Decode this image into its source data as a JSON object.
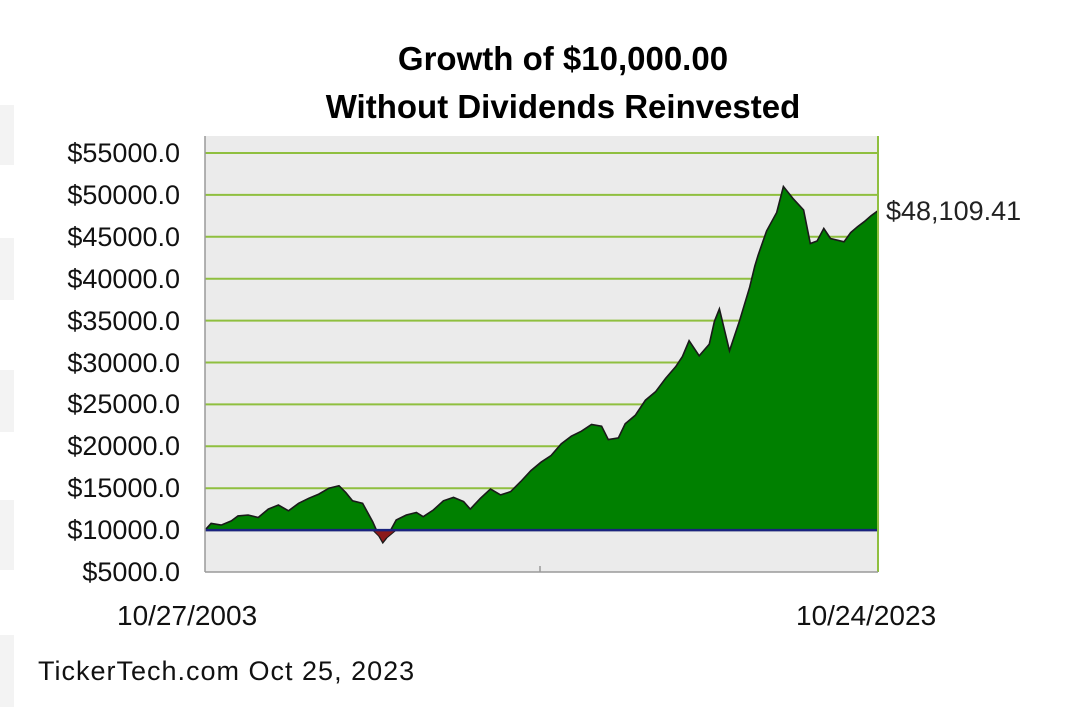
{
  "chart_data": {
    "type": "area",
    "title": "Growth of $10,000.00",
    "subtitle": "Without Dividends Reinvested",
    "start_label": "10/27/2003",
    "end_label": "10/24/2023",
    "end_value_label": "$48,109.41",
    "footer": "TickerTech.com  Oct 25, 2023",
    "baseline": 10000,
    "ylim": [
      5000,
      56000
    ],
    "xlim": [
      2003.82,
      2023.81
    ],
    "y_ticks": [
      "$55000.0",
      "$50000.0",
      "$45000.0",
      "$40000.0",
      "$35000.0",
      "$30000.0",
      "$25000.0",
      "$20000.0",
      "$15000.0",
      "$10000.0",
      "$5000.0"
    ],
    "y_tick_values": [
      55000,
      50000,
      45000,
      40000,
      35000,
      30000,
      25000,
      20000,
      15000,
      10000,
      5000
    ],
    "grid": true,
    "colors": {
      "fill": "#008000",
      "outline": "#1a1a1a",
      "baseline": "#1a237e",
      "grid": "#8fbf3f",
      "plot_bg": "#ebebeb",
      "below_baseline": "#8b1a1a"
    },
    "series": [
      {
        "x": [
          2003.82,
          2004.0,
          2004.3,
          2004.6,
          2004.8,
          2005.1,
          2005.4,
          2005.7,
          2006.0,
          2006.3,
          2006.6,
          2006.9,
          2007.2,
          2007.5,
          2007.8,
          2008.0,
          2008.2,
          2008.5,
          2008.8,
          2009.0,
          2009.1,
          2009.2,
          2009.5,
          2009.8,
          2010.1,
          2010.3,
          2010.6,
          2010.9,
          2011.2,
          2011.5,
          2011.7,
          2012.0,
          2012.3,
          2012.6,
          2012.9,
          2013.2,
          2013.5,
          2013.8,
          2014.1,
          2014.4,
          2014.7,
          2015.0,
          2015.3,
          2015.6,
          2015.8,
          2016.1,
          2016.3,
          2016.6,
          2016.9,
          2017.2,
          2017.5,
          2017.8,
          2018.0,
          2018.2,
          2018.5,
          2018.8,
          2018.95,
          2019.1,
          2019.4,
          2019.7,
          2020.0,
          2020.15,
          2020.25,
          2020.5,
          2020.8,
          2021.0,
          2021.3,
          2021.6,
          2021.8,
          2022.0,
          2022.2,
          2022.4,
          2022.6,
          2022.8,
          2023.0,
          2023.2,
          2023.4,
          2023.6,
          2023.81
        ],
        "values": [
          10000,
          10800,
          10600,
          11100,
          11700,
          11800,
          11500,
          12500,
          13000,
          12300,
          13200,
          13800,
          14300,
          15000,
          15300,
          14500,
          13500,
          13200,
          11000,
          9200,
          8500,
          9000,
          11200,
          11800,
          12100,
          11600,
          12400,
          13500,
          13900,
          13400,
          12500,
          13800,
          14900,
          14200,
          14600,
          15800,
          17100,
          18100,
          18900,
          20300,
          21200,
          21800,
          22600,
          22400,
          20800,
          21000,
          22700,
          23700,
          25500,
          26500,
          28100,
          29500,
          30700,
          32600,
          30800,
          32200,
          34900,
          36400,
          31400,
          35000,
          39000,
          41500,
          42800,
          45700,
          47900,
          51000,
          49500,
          48200,
          44200,
          44500,
          46000,
          44800,
          44600,
          44400,
          45500,
          46200,
          46800,
          47500,
          48109.41
        ]
      }
    ]
  }
}
